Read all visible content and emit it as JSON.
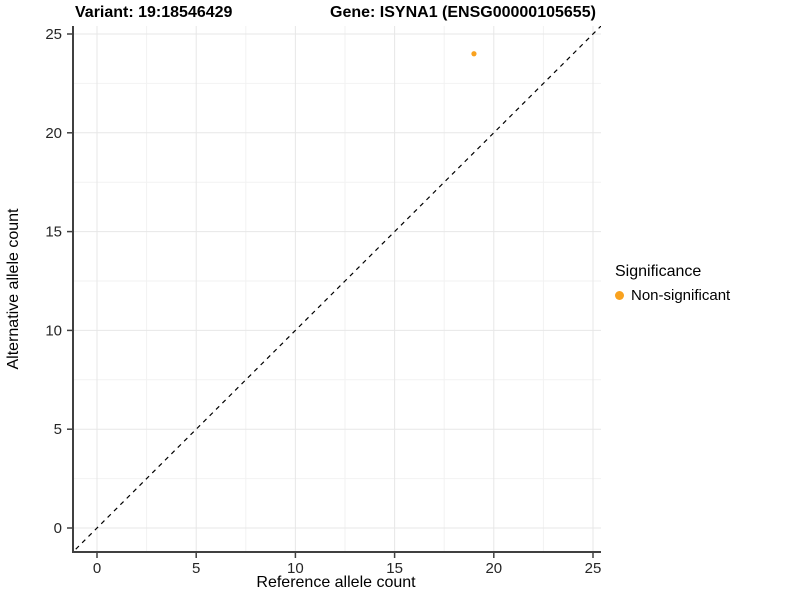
{
  "titles": {
    "left": "Variant: 19:18546429",
    "right": "Gene: ISYNA1 (ENSG00000105655)"
  },
  "chart_data": {
    "type": "scatter",
    "title": "Variant: 19:18546429 / Gene: ISYNA1 (ENSG00000105655)",
    "xlabel": "Reference allele count",
    "ylabel": "Alternative allele count",
    "xlim": [
      0,
      25
    ],
    "ylim": [
      0,
      25
    ],
    "xticks": [
      0,
      5,
      10,
      15,
      20,
      25
    ],
    "yticks": [
      0,
      5,
      10,
      15,
      20,
      25
    ],
    "grid": "major+minor",
    "grid_major_color": "#e7e7e7",
    "grid_minor_color": "#f2f2f2",
    "axis_line_color": "#404040",
    "tick_label_color": "#262626",
    "points": [
      {
        "x": 19,
        "y": 24,
        "series": "Non-significant",
        "color": "#F9A21F"
      }
    ],
    "reference_line": {
      "type": "abline",
      "slope": 1,
      "intercept": 0,
      "style": "dashed",
      "color": "#000000"
    },
    "legend": {
      "title": "Significance",
      "position": "right",
      "items": [
        {
          "label": "Non-significant",
          "color": "#F9A21F"
        }
      ]
    }
  }
}
